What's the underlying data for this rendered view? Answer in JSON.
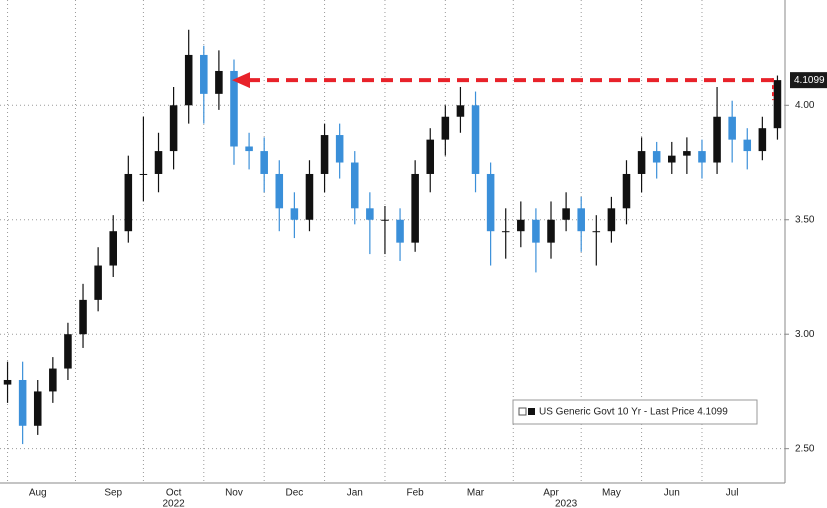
{
  "chart_data": {
    "type": "candlestick",
    "categories": [
      null,
      null,
      "Aug",
      null,
      null,
      null,
      null,
      "Sep",
      null,
      null,
      null,
      "Oct",
      null,
      null,
      null,
      "Nov",
      null,
      null,
      null,
      "Dec",
      null,
      null,
      null,
      "Jan",
      null,
      null,
      null,
      "Feb",
      null,
      null,
      null,
      "Mar",
      null,
      null,
      null,
      null,
      "Apr",
      null,
      null,
      null,
      "May",
      null,
      null,
      null,
      "Jun",
      null,
      null,
      null,
      "Jul",
      null,
      null,
      null
    ],
    "years": [
      null,
      null,
      null,
      null,
      null,
      null,
      null,
      null,
      null,
      null,
      null,
      "2022",
      null,
      null,
      null,
      null,
      null,
      null,
      null,
      null,
      null,
      null,
      null,
      null,
      null,
      null,
      null,
      null,
      null,
      null,
      null,
      null,
      null,
      null,
      null,
      null,
      null,
      "2023",
      null,
      null,
      null,
      null,
      null,
      null,
      null,
      null,
      null,
      null,
      null,
      null,
      null,
      null
    ],
    "series": [
      {
        "name": "US Generic Govt 10 Yr - Last Price 4.1099",
        "up_color": "#111111",
        "down_color": "#3a8fd9",
        "open": [
          2.78,
          2.8,
          2.6,
          2.75,
          2.85,
          3.0,
          3.15,
          3.3,
          3.45,
          3.7,
          3.7,
          3.8,
          4.0,
          4.22,
          4.05,
          4.15,
          3.82,
          3.8,
          3.7,
          3.55,
          3.5,
          3.7,
          3.87,
          3.75,
          3.55,
          3.5,
          3.5,
          3.4,
          3.7,
          3.85,
          3.95,
          4.0,
          3.7,
          3.45,
          3.45,
          3.5,
          3.4,
          3.5,
          3.55,
          3.45,
          3.45,
          3.55,
          3.7,
          3.8,
          3.75,
          3.78,
          3.8,
          3.75,
          3.95,
          3.85,
          3.8,
          3.9
        ],
        "high": [
          2.88,
          2.88,
          2.8,
          2.9,
          3.05,
          3.22,
          3.38,
          3.52,
          3.78,
          3.95,
          3.88,
          4.08,
          4.33,
          4.26,
          4.24,
          4.2,
          3.88,
          3.86,
          3.76,
          3.62,
          3.76,
          3.92,
          3.92,
          3.8,
          3.62,
          3.56,
          3.55,
          3.76,
          3.9,
          4.0,
          4.08,
          4.06,
          3.75,
          3.55,
          3.58,
          3.55,
          3.58,
          3.62,
          3.6,
          3.52,
          3.6,
          3.76,
          3.86,
          3.84,
          3.84,
          3.86,
          3.85,
          4.08,
          4.02,
          3.9,
          3.95,
          4.13
        ],
        "low": [
          2.7,
          2.52,
          2.56,
          2.7,
          2.8,
          2.94,
          3.1,
          3.25,
          3.4,
          3.58,
          3.62,
          3.72,
          3.92,
          3.92,
          3.98,
          3.74,
          3.72,
          3.62,
          3.45,
          3.42,
          3.45,
          3.62,
          3.68,
          3.48,
          3.35,
          3.35,
          3.32,
          3.36,
          3.62,
          3.78,
          3.88,
          3.62,
          3.3,
          3.33,
          3.38,
          3.27,
          3.33,
          3.45,
          3.36,
          3.3,
          3.4,
          3.48,
          3.62,
          3.68,
          3.7,
          3.7,
          3.68,
          3.7,
          3.75,
          3.72,
          3.76,
          3.85
        ],
        "close": [
          2.8,
          2.6,
          2.75,
          2.85,
          3.0,
          3.15,
          3.3,
          3.45,
          3.7,
          3.7,
          3.8,
          4.0,
          4.22,
          4.05,
          4.15,
          3.82,
          3.8,
          3.7,
          3.55,
          3.5,
          3.7,
          3.87,
          3.75,
          3.55,
          3.5,
          3.5,
          3.4,
          3.7,
          3.85,
          3.95,
          4.0,
          3.7,
          3.45,
          3.45,
          3.5,
          3.4,
          3.5,
          3.55,
          3.45,
          3.45,
          3.55,
          3.7,
          3.8,
          3.75,
          3.78,
          3.8,
          3.75,
          3.95,
          3.85,
          3.8,
          3.9,
          4.11
        ]
      }
    ],
    "last_price": 4.1099,
    "ylim": [
      2.35,
      4.46
    ],
    "yticks": [
      {
        "value": 2.5,
        "label": "2.50"
      },
      {
        "value": 3,
        "label": "3.00"
      },
      {
        "value": 3.5,
        "label": "3.50"
      },
      {
        "value": 4,
        "label": "4.00"
      }
    ],
    "grid": true
  }
}
